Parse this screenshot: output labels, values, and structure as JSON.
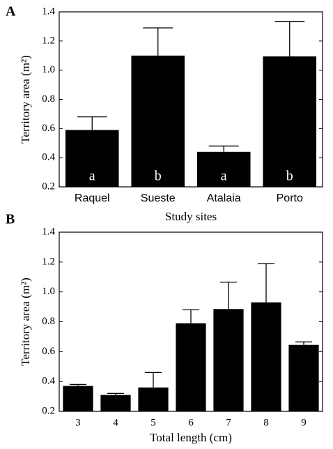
{
  "chart_data": [
    {
      "type": "bar",
      "panel_label": "A",
      "ylabel": "Territory area (m²)",
      "xlabel": "Study sites",
      "categories": [
        "Raquel",
        "Sueste",
        "Atalaia",
        "Porto"
      ],
      "values": [
        0.59,
        1.1,
        0.44,
        1.095
      ],
      "errors": [
        0.09,
        0.19,
        0.04,
        0.24
      ],
      "bar_labels": [
        "a",
        "b",
        "a",
        "b"
      ],
      "color": "#000000",
      "ylim": [
        0.2,
        1.4
      ],
      "yticks": [
        0.2,
        0.4,
        0.6,
        0.8,
        {
          "value": 1,
          "label": "1.0"
        },
        1.2,
        1.4
      ]
    },
    {
      "type": "bar",
      "panel_label": "B",
      "ylabel": "Territory area (m²)",
      "xlabel": "Total length (cm)",
      "categories": [
        "3",
        "4",
        "5",
        "6",
        "7",
        "8",
        "9"
      ],
      "values": [
        0.37,
        0.31,
        0.36,
        0.79,
        0.885,
        0.93,
        0.645
      ],
      "errors": [
        0.01,
        0.01,
        0.1,
        0.09,
        0.18,
        0.26,
        0.02
      ],
      "color": "#000000",
      "ylim": [
        0.2,
        1.4
      ],
      "yticks": [
        0.2,
        0.4,
        0.6,
        0.8,
        {
          "value": 1,
          "label": "1.0"
        },
        1.2,
        1.4
      ]
    }
  ]
}
